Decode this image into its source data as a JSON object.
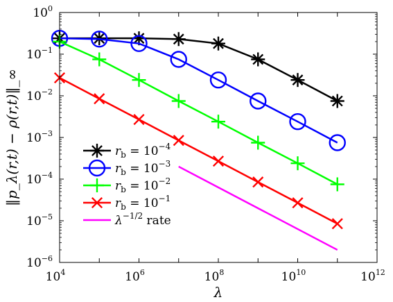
{
  "chart_data": {
    "type": "line",
    "xscale": "log",
    "yscale": "log",
    "xlim": [
      10000,
      1000000000000
    ],
    "ylim": [
      1e-06,
      1
    ],
    "grid": false,
    "legend_position": "bottom-left",
    "xlabel": "λ",
    "ylabel": "‖p_λ(r,t) − ρ(r,t)‖_∞",
    "xticks": [
      {
        "value": 10000,
        "base": "10",
        "exp": "4"
      },
      {
        "value": 1000000,
        "base": "10",
        "exp": "6"
      },
      {
        "value": 100000000,
        "base": "10",
        "exp": "8"
      },
      {
        "value": 10000000000,
        "base": "10",
        "exp": "10"
      },
      {
        "value": 1000000000000,
        "base": "10",
        "exp": "12"
      }
    ],
    "yticks": [
      {
        "value": 1e-06,
        "base": "10",
        "exp": "−6"
      },
      {
        "value": 1e-05,
        "base": "10",
        "exp": "−5"
      },
      {
        "value": 0.0001,
        "base": "10",
        "exp": "−4"
      },
      {
        "value": 0.001,
        "base": "10",
        "exp": "−3"
      },
      {
        "value": 0.01,
        "base": "10",
        "exp": "−2"
      },
      {
        "value": 0.1,
        "base": "10",
        "exp": "−1"
      },
      {
        "value": 1,
        "base": "10",
        "exp": "0"
      }
    ],
    "series": [
      {
        "name": "r_b = 10^-4",
        "legend_base": "r",
        "legend_sub": "b",
        "legend_eq": " = 10",
        "legend_exp": "−4",
        "color": "#000000",
        "marker": "asterisk",
        "x": [
          10000,
          100000,
          1000000,
          10000000,
          100000000,
          1000000000,
          10000000000,
          100000000000
        ],
        "y": [
          0.24,
          0.24,
          0.24,
          0.23,
          0.18,
          0.075,
          0.024,
          0.0075
        ]
      },
      {
        "name": "r_b = 10^-3",
        "legend_base": "r",
        "legend_sub": "b",
        "legend_eq": " = 10",
        "legend_exp": "−3",
        "color": "#0000ff",
        "marker": "circle",
        "x": [
          10000,
          100000,
          1000000,
          10000000,
          100000000,
          1000000000,
          10000000000,
          100000000000
        ],
        "y": [
          0.24,
          0.23,
          0.18,
          0.075,
          0.024,
          0.0075,
          0.0024,
          0.00075
        ]
      },
      {
        "name": "r_b = 10^-2",
        "legend_base": "r",
        "legend_sub": "b",
        "legend_eq": " = 10",
        "legend_exp": "−2",
        "color": "#00ff00",
        "marker": "plus",
        "x": [
          10000,
          100000,
          1000000,
          10000000,
          100000000,
          1000000000,
          10000000000,
          100000000000
        ],
        "y": [
          0.2,
          0.075,
          0.024,
          0.0075,
          0.0024,
          0.00075,
          0.00024,
          7.5e-05
        ]
      },
      {
        "name": "r_b = 10^-1",
        "legend_base": "r",
        "legend_sub": "b",
        "legend_eq": " = 10",
        "legend_exp": "−1",
        "color": "#ff0000",
        "marker": "x",
        "x": [
          10000,
          100000,
          1000000,
          10000000,
          100000000,
          1000000000,
          10000000000,
          100000000000
        ],
        "y": [
          0.027,
          0.0085,
          0.0027,
          0.00085,
          0.00027,
          8.5e-05,
          2.7e-05,
          8.5e-06
        ]
      },
      {
        "name": "λ^-1/2 rate",
        "legend_base": "λ",
        "legend_exp": "−1/2",
        "legend_tail": " rate",
        "color": "#ff00ff",
        "marker": "none",
        "x": [
          10000000,
          100000000000
        ],
        "y": [
          0.0002,
          2e-06
        ]
      }
    ]
  }
}
